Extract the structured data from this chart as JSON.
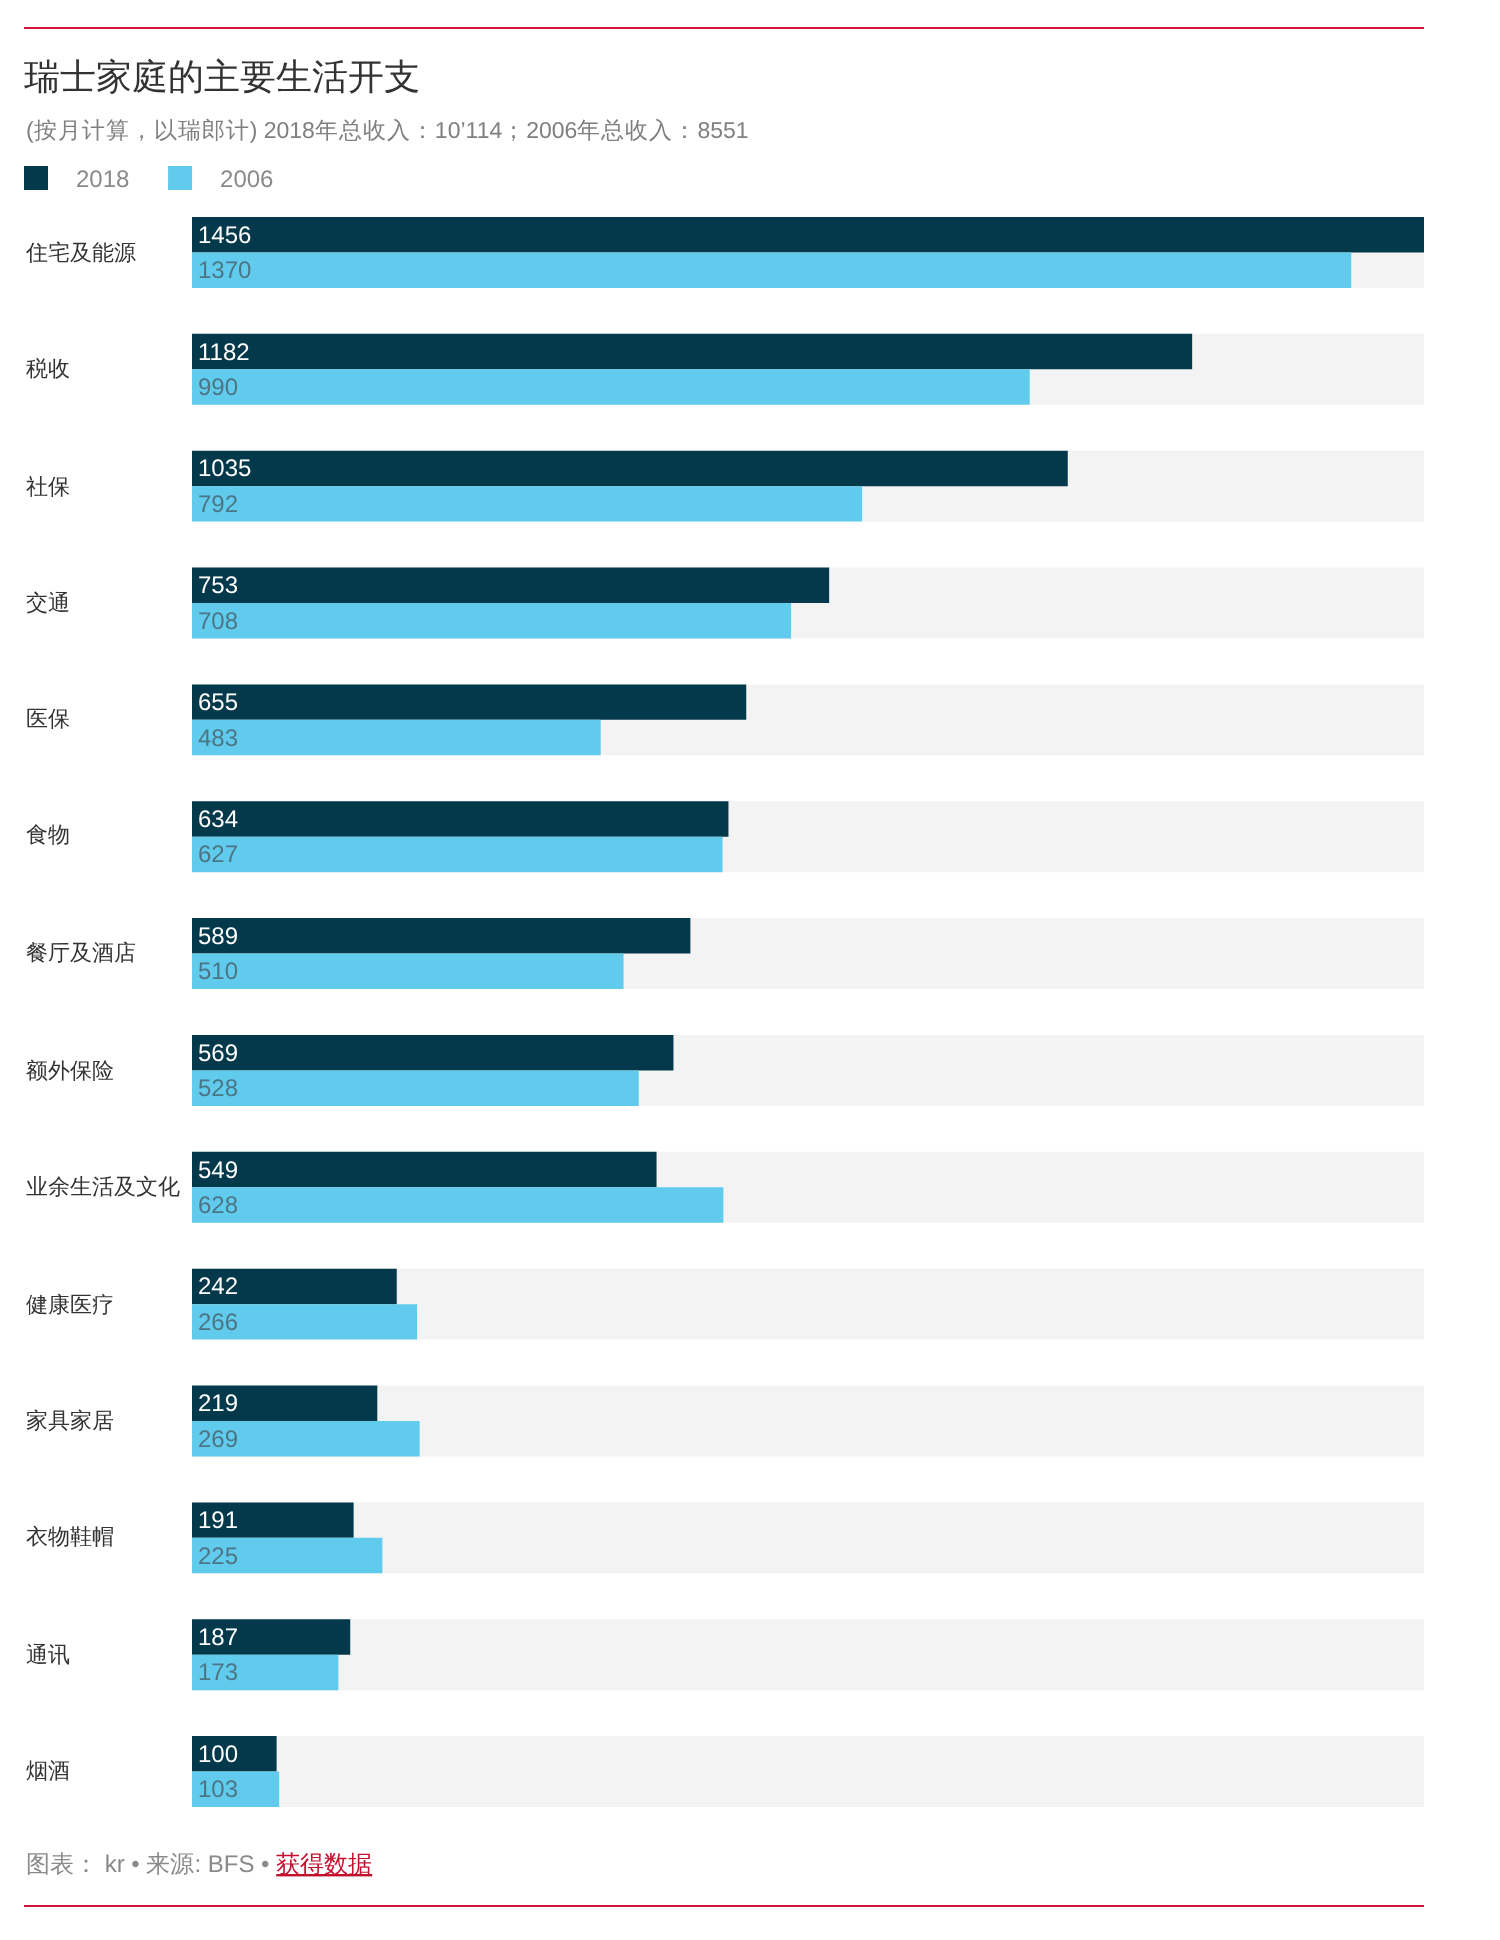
{
  "chart_data": {
    "type": "bar",
    "orientation": "horizontal",
    "title": "瑞士家庭的主要生活开支",
    "subtitle": "(按月计算，以瑞郎计) 2018年总收入：10’114；2006年总收入：8551",
    "categories": [
      "住宅及能源",
      "税收",
      "社保",
      "交通",
      "医保",
      "食物",
      "餐厅及酒店",
      "额外保险",
      "业余生活及文化",
      "健康医疗",
      "家具家居",
      "衣物鞋帽",
      "通讯",
      "烟酒"
    ],
    "series": [
      {
        "name": "2018",
        "color": "#03394a",
        "values": [
          1456,
          1182,
          1035,
          753,
          655,
          634,
          589,
          569,
          549,
          242,
          219,
          191,
          187,
          100
        ]
      },
      {
        "name": "2006",
        "color": "#61cbed",
        "values": [
          1370,
          990,
          792,
          708,
          483,
          627,
          510,
          528,
          628,
          266,
          269,
          225,
          173,
          103
        ]
      }
    ],
    "bands": [
      {
        "axis": "y",
        "from": "住宅及能源",
        "to": "住宅及能源",
        "color": "#f3f3f3"
      },
      {
        "axis": "y",
        "from": "税收",
        "to": "税收",
        "color": "#f3f3f3"
      },
      {
        "axis": "y",
        "from": "社保",
        "to": "社保",
        "color": "#f3f3f3"
      },
      {
        "axis": "y",
        "from": "交通",
        "to": "交通",
        "color": "#f3f3f3"
      },
      {
        "axis": "y",
        "from": "医保",
        "to": "医保",
        "color": "#f3f3f3"
      },
      {
        "axis": "y",
        "from": "食物",
        "to": "食物",
        "color": "#f3f3f3"
      },
      {
        "axis": "y",
        "from": "餐厅及酒店",
        "to": "餐厅及酒店",
        "color": "#f3f3f3"
      },
      {
        "axis": "y",
        "from": "额外保险",
        "to": "额外保险",
        "color": "#f3f3f3"
      },
      {
        "axis": "y",
        "from": "业余生活及文化",
        "to": "业余生活及文化",
        "color": "#f3f3f3"
      },
      {
        "axis": "y",
        "from": "健康医疗",
        "to": "健康医疗",
        "color": "#f3f3f3"
      },
      {
        "axis": "y",
        "from": "家具家居",
        "to": "家具家居",
        "color": "#f3f3f3"
      },
      {
        "axis": "y",
        "from": "衣物鞋帽",
        "to": "衣物鞋帽",
        "color": "#f3f3f3"
      },
      {
        "axis": "y",
        "from": "通讯",
        "to": "通讯",
        "color": "#f3f3f3"
      },
      {
        "axis": "y",
        "from": "烟酒",
        "to": "烟酒",
        "color": "#f3f3f3"
      }
    ],
    "data_labels": true,
    "legend": "top left",
    "tick_labels": "y",
    "annotations": [
      "图表： kr • 来源: BFS •",
      "获得数据"
    ]
  }
}
